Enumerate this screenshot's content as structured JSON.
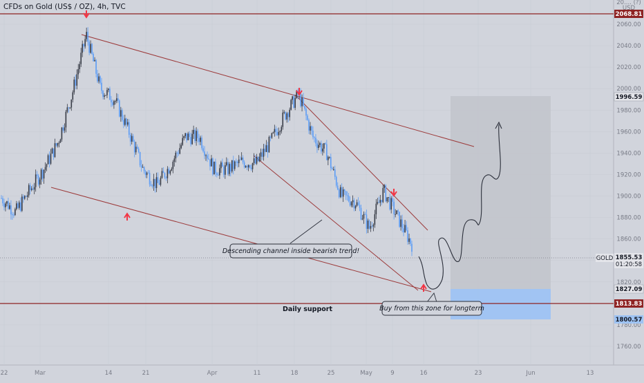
{
  "header": {
    "title": "CFDs on Gold (US$ / OZ), 4h, TVC"
  },
  "axis": {
    "currency_top": "20.... (?)",
    "currency": "USD",
    "y_ticks": [
      "2060.00",
      "2040.00",
      "2020.00",
      "2000.00",
      "1980.00",
      "1960.00",
      "1940.00",
      "1920.00",
      "1900.00",
      "1880.00",
      "1860.00",
      "1840.00",
      "1820.00",
      "1800.00",
      "1780.00",
      "1760.00"
    ],
    "x_ticks": [
      "22",
      "Mar",
      "14",
      "21",
      "Apr",
      "11",
      "18",
      "25",
      "May",
      "9",
      "16",
      "23",
      "Jun",
      "13"
    ]
  },
  "price_tags": {
    "resistance": "2068.81",
    "tp_top": "1996.59",
    "gold_label": "GOLD",
    "gold_price": "1855.53",
    "countdown": "01:20:58",
    "entry": "1827.09",
    "support": "1813.83",
    "stop": "1800.57"
  },
  "annotations": {
    "channel_note": "Descending channel inside bearish trend!",
    "buy_note": "Buy from this zone for longterm",
    "support_label": "Daily support"
  },
  "colors": {
    "background": "#d1d4dc",
    "candle_blue": "#5b9cf6",
    "candle_dark": "#363a45",
    "channel_line": "#9c3a3a",
    "resistance_line": "#8e2323",
    "arrow_red": "#f23645",
    "tp_zone": "#c8cad2",
    "buy_zone": "#9ec3f3"
  },
  "chart_data": {
    "type": "line",
    "title": "CFDs on Gold (US$ / OZ), 4h, TVC",
    "ylim": [
      1750,
      2085
    ],
    "x_ticks": [
      "22",
      "Mar",
      "14",
      "21",
      "Apr",
      "11",
      "18",
      "25",
      "May",
      "9",
      "16",
      "23",
      "Jun",
      "13"
    ],
    "series": [
      {
        "name": "GOLD",
        "points": [
          [
            "22",
            1898
          ],
          [
            "24 Feb",
            1885
          ],
          [
            "28 Feb",
            1905
          ],
          [
            "Mar",
            1925
          ],
          [
            "3 Mar",
            1950
          ],
          [
            "6 Mar",
            1995
          ],
          [
            "8 Mar",
            2050
          ],
          [
            "9 Mar",
            2000
          ],
          [
            "10 Mar",
            1990
          ],
          [
            "14",
            1960
          ],
          [
            "16 Mar",
            1925
          ],
          [
            "18 Mar",
            1910
          ],
          [
            "21",
            1930
          ],
          [
            "23 Mar",
            1955
          ],
          [
            "25 Mar",
            1955
          ],
          [
            "28 Mar",
            1925
          ],
          [
            "Apr",
            1925
          ],
          [
            "4 Apr",
            1932
          ],
          [
            "7 Apr",
            1930
          ],
          [
            "11",
            1950
          ],
          [
            "13 Apr",
            1975
          ],
          [
            "18",
            1995
          ],
          [
            "19 Apr",
            1955
          ],
          [
            "21 Apr",
            1940
          ],
          [
            "25",
            1900
          ],
          [
            "28 Apr",
            1895
          ],
          [
            "May",
            1870
          ],
          [
            "4 May",
            1905
          ],
          [
            "6 May",
            1880
          ],
          [
            "9",
            1855
          ]
        ]
      }
    ],
    "levels": {
      "resistance": 2068.81,
      "take_profit": 1996.59,
      "last_price": 1855.53,
      "entry": 1827.09,
      "daily_support": 1813.83,
      "stop_loss": 1800.57
    }
  }
}
